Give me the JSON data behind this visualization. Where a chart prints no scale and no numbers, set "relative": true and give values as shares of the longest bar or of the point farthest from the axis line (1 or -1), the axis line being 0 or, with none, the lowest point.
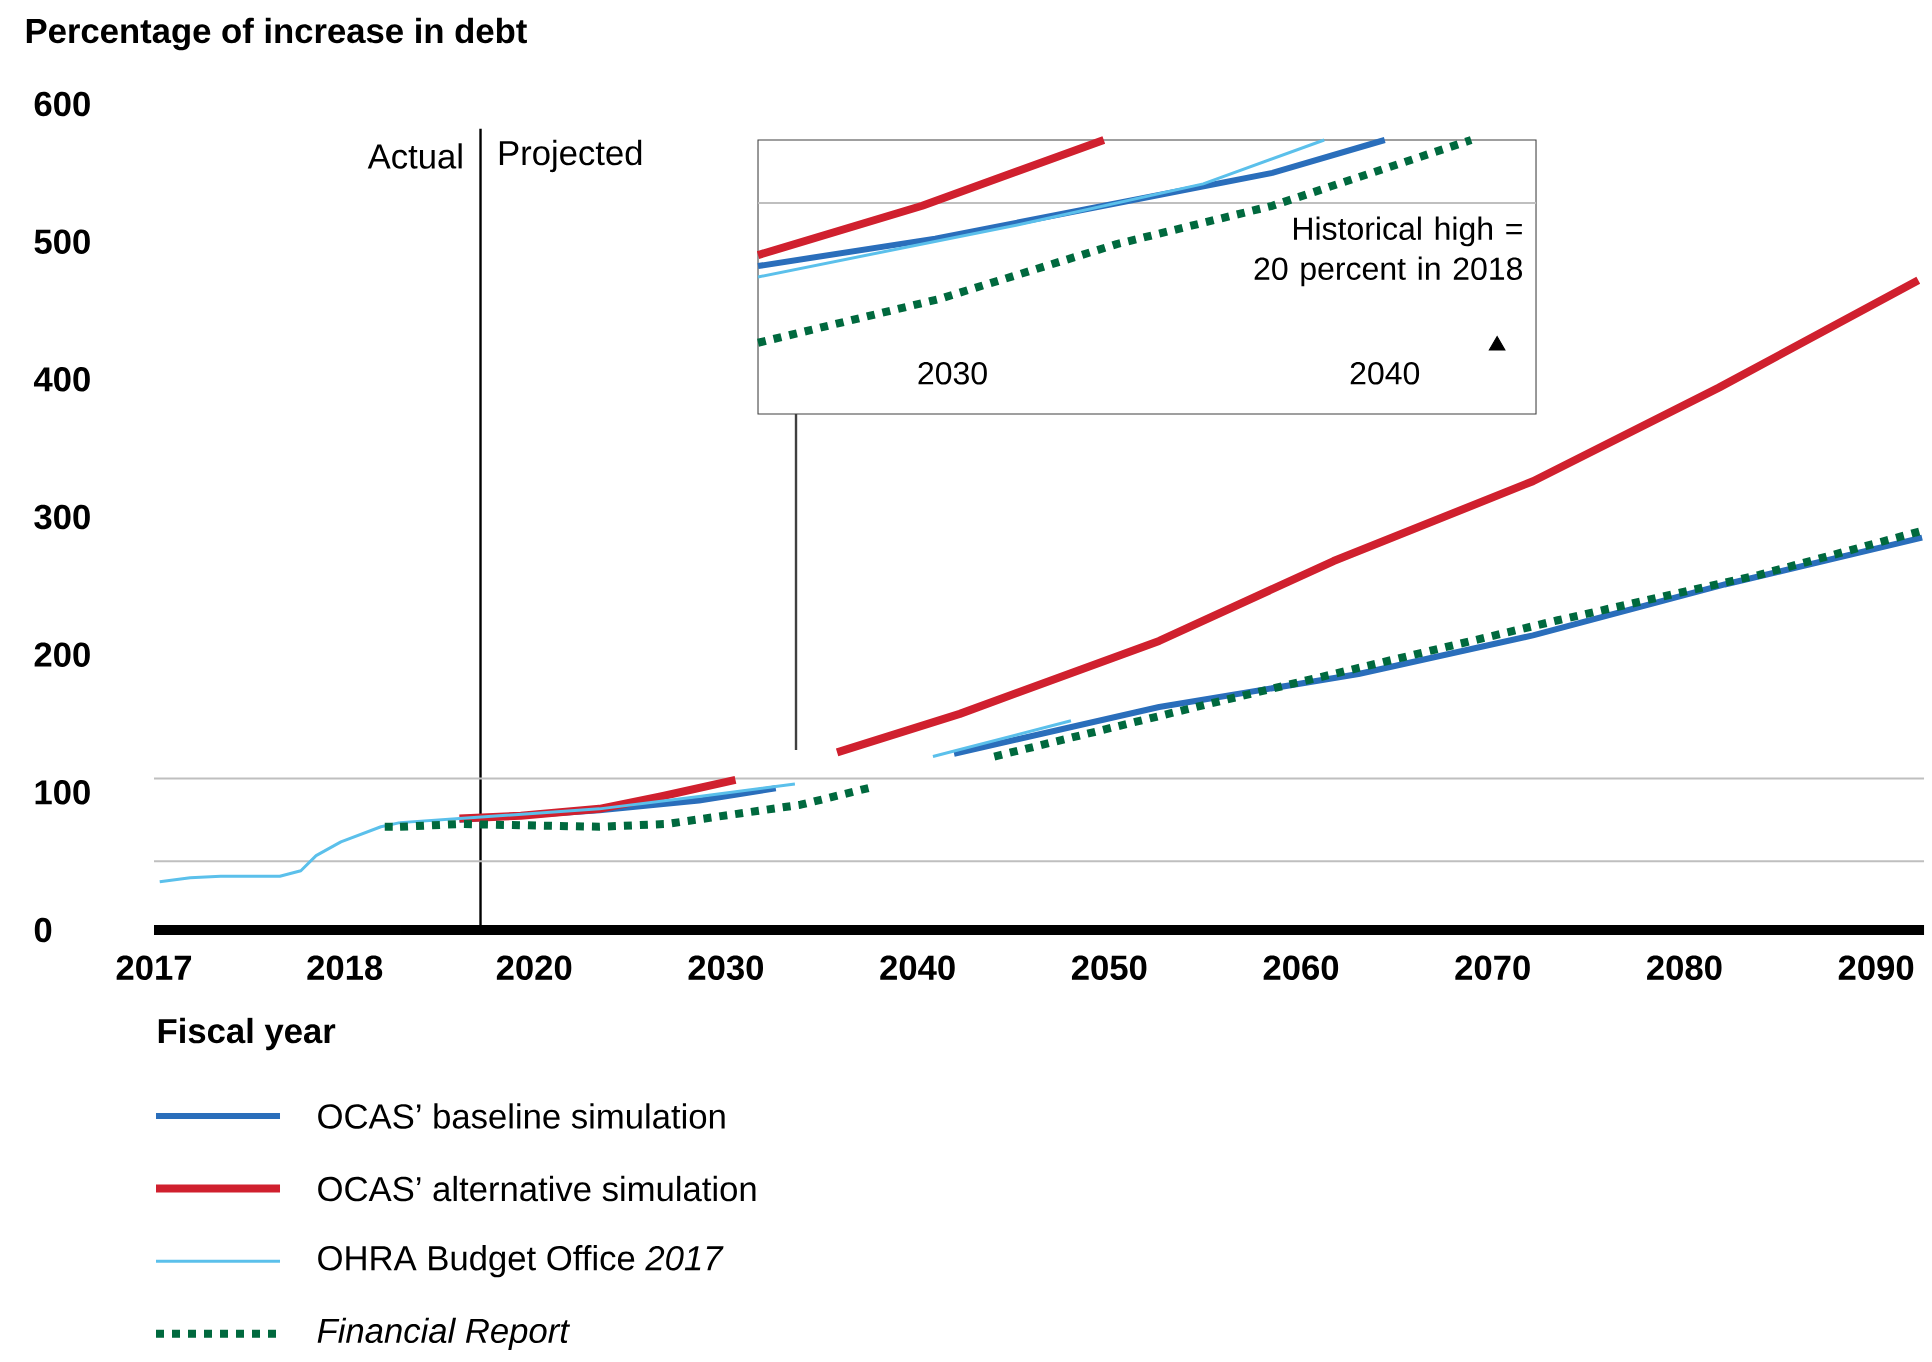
{
  "chart_data": [
    {
      "type": "line",
      "ylabel": "Percentage of increase in debt",
      "xlim": [
        2017,
        2018.29
      ],
      "xticks": [
        2017,
        2018
      ],
      "ylim": [
        0,
        600
      ],
      "yticks": [
        0,
        100,
        200,
        300,
        400,
        500,
        600
      ],
      "ref_lines": [
        {
          "axis": "y",
          "value": 110,
          "color": "#bfbfbf"
        },
        {
          "axis": "y",
          "value": 50,
          "color": "#bfbfbf"
        }
      ],
      "series": [
        {
          "color": "#5bc0eb",
          "x": [
            2017.03,
            2017.19,
            2017.35,
            2017.66,
            2017.77,
            2017.85,
            2017.98,
            2018.19,
            2018.29
          ],
          "values": [
            35,
            38,
            39,
            39,
            43,
            54,
            64,
            75,
            78
          ]
        },
        {
          "color": "#00693e",
          "line_style": "dotted",
          "x": [
            2018.21,
            2018.29
          ],
          "values": [
            75,
            75
          ]
        }
      ]
    },
    {
      "type": "line",
      "xlabel": "Fiscal year",
      "xlim": [
        2013,
        2092.5
      ],
      "xticks": [
        2020,
        2030,
        2040,
        2050,
        2060,
        2070,
        2080,
        2090
      ],
      "ylim": [
        0,
        600
      ],
      "yticks": [
        0,
        100,
        200,
        300,
        400,
        500,
        600
      ],
      "tick_labels": "x",
      "legend": "bottom",
      "ref_lines": [
        {
          "axis": "x",
          "value": 2017.2,
          "color": "#000000"
        },
        {
          "axis": "y",
          "value": 110,
          "color": "#bfbfbf"
        },
        {
          "axis": "y",
          "value": 50,
          "color": "#bfbfbf"
        }
      ],
      "annotations": [
        "Actual",
        "Projected"
      ],
      "series": [
        {
          "name": "OCAS’ baseline simulation",
          "color": "#2a6ebb",
          "x": [
            2016.1,
            2023.4,
            2028.6,
            2032.6,
            2037,
            2041.9,
            2052.6,
            2063.0,
            2072.1,
            2082.1,
            2092.4
          ],
          "values": [
            80,
            87,
            94,
            103,
            null,
            128,
            162,
            186,
            214,
            251,
            285
          ]
        },
        {
          "name": "OCAS’ alternative simulation",
          "color": "#d0202e",
          "x": [
            2016.1,
            2019.3,
            2023.4,
            2026.6,
            2030.5,
            2033,
            2035.8,
            2042.2,
            2052.6,
            2061.7,
            2072.1,
            2081.8,
            2092.2
          ],
          "values": [
            81,
            83,
            88,
            97,
            109,
            null,
            129,
            157,
            210,
            268,
            326,
            394,
            472
          ]
        },
        {
          "name": "OHRA Budget Office *2017*",
          "color": "#5bc0eb",
          "x": [
            2013.0,
            2016.1,
            2023.4,
            2028.6,
            2033.6,
            2037,
            2040.8,
            2048.0
          ],
          "values": [
            78,
            81,
            88,
            97,
            106,
            null,
            126,
            152
          ]
        },
        {
          "name": "*Financial Report*",
          "color": "#00693e",
          "line_style": "dotted",
          "x": [
            2013.0,
            2016.1,
            2023.4,
            2026.9,
            2030.4,
            2033.9,
            2037.7,
            2040,
            2044.0,
            2056.0,
            2073.4,
            2083.9,
            2092.4
          ],
          "values": [
            75,
            77,
            75,
            77,
            84,
            91,
            104,
            null,
            126,
            167,
            225,
            258,
            290
          ]
        }
      ]
    },
    {
      "type": "line",
      "relative": true,
      "xlim": [
        2025.5,
        2043.5
      ],
      "xticks": [
        2030,
        2040
      ],
      "tick_labels": "x",
      "ref_lines": [
        {
          "axis": "y",
          "value": 0.77,
          "color": "#bfbfbf"
        }
      ],
      "annotations": [
        "Historical high = 20 percent in 2018"
      ],
      "series": [
        {
          "color": "#2a6ebb",
          "x": [
            2025.5,
            2029.6,
            2033.5,
            2037.4,
            2040.0
          ],
          "values": [
            0.54,
            0.64,
            0.76,
            0.88,
            1
          ]
        },
        {
          "color": "#d0202e",
          "x": [
            2025.5,
            2029.3,
            2033.5
          ],
          "values": [
            0.58,
            0.76,
            1
          ]
        },
        {
          "color": "#5bc0eb",
          "x": [
            2025.5,
            2031.5,
            2035.8,
            2038.6
          ],
          "values": [
            0.5,
            0.69,
            0.84,
            1
          ]
        },
        {
          "color": "#00693e",
          "line_style": "dotted",
          "x": [
            2025.5,
            2029.7,
            2033.8,
            2037.4,
            2042.0
          ],
          "values": [
            0.26,
            0.42,
            0.62,
            0.76,
            1
          ]
        },
        {
          "type": "scatter",
          "marker": "triangle",
          "color": "#000000",
          "x": [
            2042.6
          ],
          "values": [
            0.25
          ]
        }
      ]
    }
  ]
}
